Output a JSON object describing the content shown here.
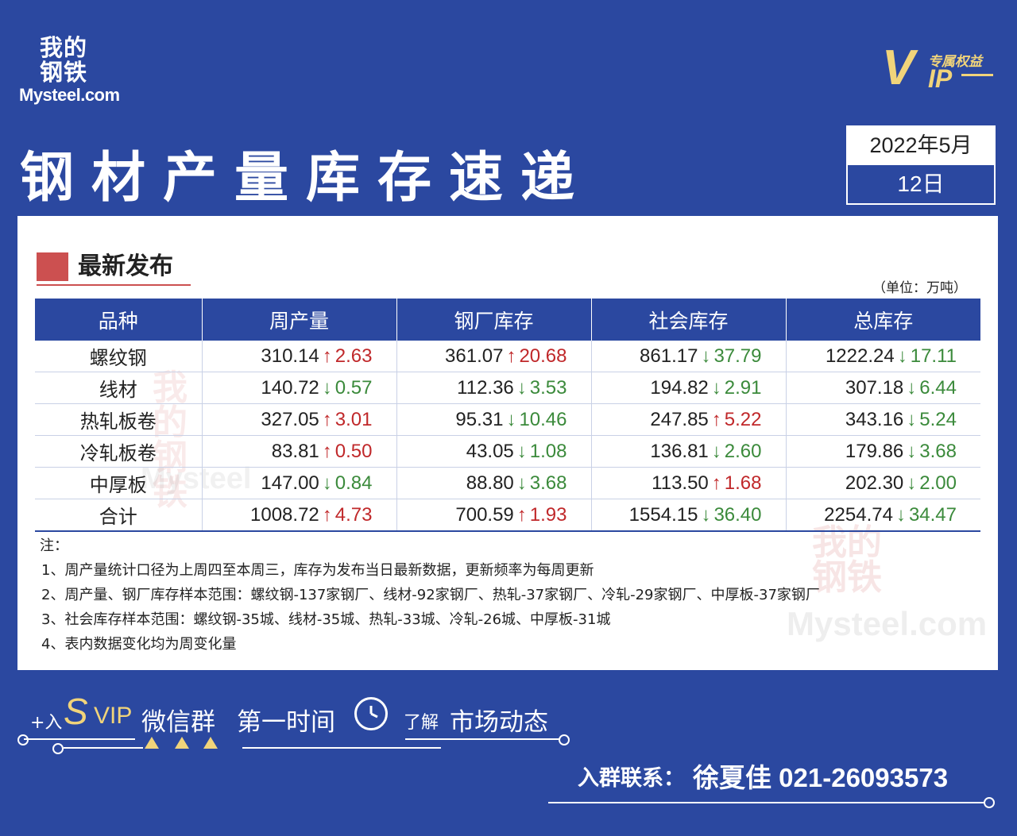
{
  "brand": {
    "logo_cn": "我的钢铁",
    "logo_en": "Mysteel.com",
    "vip_tag": "专属权益",
    "vip_v": "V",
    "vip_ip": "IP"
  },
  "header": {
    "title": "钢材产量库存速递",
    "date_line1": "2022年5月",
    "date_line2": "12日"
  },
  "section": {
    "title": "最新发布",
    "unit": "（单位：万吨）"
  },
  "table": {
    "headers": [
      "品种",
      "周产量",
      "钢厂库存",
      "社会库存",
      "总库存"
    ],
    "rows": [
      {
        "name": "螺纹钢",
        "cells": [
          {
            "value": "310.14",
            "dir": "up",
            "arrow": "↑",
            "change": "2.63"
          },
          {
            "value": "361.07",
            "dir": "up",
            "arrow": "↑",
            "change": "20.68"
          },
          {
            "value": "861.17",
            "dir": "down",
            "arrow": "↓",
            "change": "37.79"
          },
          {
            "value": "1222.24",
            "dir": "down",
            "arrow": "↓",
            "change": "17.11"
          }
        ]
      },
      {
        "name": "线材",
        "cells": [
          {
            "value": "140.72",
            "dir": "down",
            "arrow": "↓",
            "change": "0.57"
          },
          {
            "value": "112.36",
            "dir": "down",
            "arrow": "↓",
            "change": "3.53"
          },
          {
            "value": "194.82",
            "dir": "down",
            "arrow": "↓",
            "change": "2.91"
          },
          {
            "value": "307.18",
            "dir": "down",
            "arrow": "↓",
            "change": "6.44"
          }
        ]
      },
      {
        "name": "热轧板卷",
        "cells": [
          {
            "value": "327.05",
            "dir": "up",
            "arrow": "↑",
            "change": "3.01"
          },
          {
            "value": "95.31",
            "dir": "down",
            "arrow": "↓",
            "change": "10.46"
          },
          {
            "value": "247.85",
            "dir": "up",
            "arrow": "↑",
            "change": "5.22"
          },
          {
            "value": "343.16",
            "dir": "down",
            "arrow": "↓",
            "change": "5.24"
          }
        ]
      },
      {
        "name": "冷轧板卷",
        "cells": [
          {
            "value": "83.81",
            "dir": "up",
            "arrow": "↑",
            "change": "0.50"
          },
          {
            "value": "43.05",
            "dir": "down",
            "arrow": "↓",
            "change": "1.08"
          },
          {
            "value": "136.81",
            "dir": "down",
            "arrow": "↓",
            "change": "2.60"
          },
          {
            "value": "179.86",
            "dir": "down",
            "arrow": "↓",
            "change": "3.68"
          }
        ]
      },
      {
        "name": "中厚板",
        "cells": [
          {
            "value": "147.00",
            "dir": "down",
            "arrow": "↓",
            "change": "0.84"
          },
          {
            "value": "88.80",
            "dir": "down",
            "arrow": "↓",
            "change": "3.68"
          },
          {
            "value": "113.50",
            "dir": "up",
            "arrow": "↑",
            "change": "1.68"
          },
          {
            "value": "202.30",
            "dir": "down",
            "arrow": "↓",
            "change": "2.00"
          }
        ]
      },
      {
        "name": "合计",
        "total": true,
        "cells": [
          {
            "value": "1008.72",
            "dir": "up",
            "arrow": "↑",
            "change": "4.73"
          },
          {
            "value": "700.59",
            "dir": "up",
            "arrow": "↑",
            "change": "1.93"
          },
          {
            "value": "1554.15",
            "dir": "down",
            "arrow": "↓",
            "change": "36.40"
          },
          {
            "value": "2254.74",
            "dir": "down",
            "arrow": "↓",
            "change": "34.47"
          }
        ]
      }
    ]
  },
  "notes": {
    "label": "注：",
    "items": [
      "1、周产量统计口径为上周四至本周三，库存为发布当日最新数据，更新频率为每周更新",
      "2、周产量、钢厂库存样本范围：螺纹钢-137家钢厂、线材-92家钢厂、热轧-37家钢厂、冷轧-29家钢厂、中厚板-37家钢厂",
      "3、社会库存样本范围：螺纹钢-35城、线材-35城、热轧-33城、冷轧-26城、中厚板-31城",
      "4、表内数据变化均为周变化量"
    ]
  },
  "footer": {
    "plus": "+入",
    "s": "S",
    "vip": "VIP",
    "wechat": "微信群",
    "first_time": "第一时间",
    "understand": "了解",
    "market": "市场动态",
    "contact_label": "入群联系：",
    "contact": "徐夏佳  021-26093573"
  },
  "colors": {
    "background": "#2b48a0",
    "accent": "#cc5050",
    "gold": "#f1d47a",
    "up": "#c0282a",
    "down": "#3b8a3b"
  }
}
